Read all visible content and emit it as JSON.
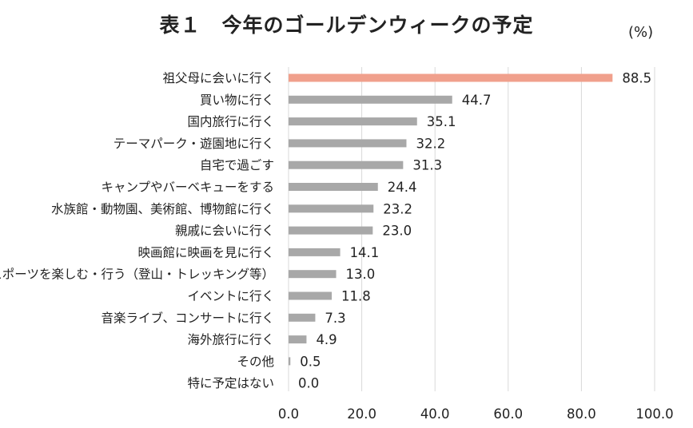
{
  "chart_data": {
    "type": "bar",
    "orientation": "horizontal",
    "title": "表１　今年のゴールデンウィークの予定",
    "unit": "(%)",
    "categories": [
      "祖父母に会いに行く",
      "買い物に行く",
      "国内旅行に行く",
      "テーマパーク・遊園地に行く",
      "自宅で過ごす",
      "キャンプやバーベキューをする",
      "水族館・動物園、美術館、博物館に行く",
      "親戚に会いに行く",
      "映画館に映画を見に行く",
      "スポーツを楽しむ・行う（登山・トレッキング等）",
      "イベントに行く",
      "音楽ライブ、コンサートに行く",
      "海外旅行に行く",
      "その他",
      "特に予定はない"
    ],
    "values": [
      88.5,
      44.7,
      35.1,
      32.2,
      31.3,
      24.4,
      23.2,
      23.0,
      14.1,
      13.0,
      11.8,
      7.3,
      4.9,
      0.5,
      0.0
    ],
    "value_labels": [
      "88.5",
      "44.7",
      "35.1",
      "32.2",
      "31.3",
      "24.4",
      "23.2",
      "23.0",
      "14.1",
      "13.0",
      "11.8",
      "7.3",
      "4.9",
      "0.5",
      "0.0"
    ],
    "xlim": [
      0,
      100
    ],
    "xticks": [
      0,
      20,
      40,
      60,
      80,
      100
    ],
    "xtick_labels": [
      "0.0",
      "20.0",
      "40.0",
      "60.0",
      "80.0",
      "100.0"
    ],
    "grid": true,
    "highlight_color": "#f0a08c",
    "bar_color": "#a8a8a8",
    "grid_color": "#d9d9d9"
  }
}
